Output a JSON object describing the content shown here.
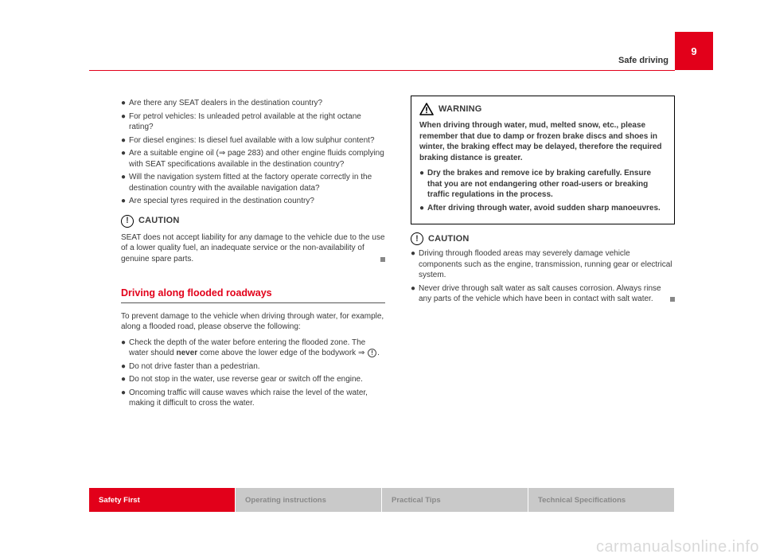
{
  "colors": {
    "accent": "#e2001a",
    "tab_inactive_bg": "#c9c9c9",
    "tab_inactive_text": "#888888",
    "text": "#3a3a3a",
    "watermark": "#d9d9d9"
  },
  "page_number": "9",
  "header_title": "Safe driving",
  "left": {
    "bullets1": [
      "Are there any SEAT dealers in the destination country?",
      "For petrol vehicles: Is unleaded petrol available at the right octane rating?",
      "For diesel engines: Is diesel fuel available with a low sulphur content?",
      "Are a suitable engine oil (⇒ page 283) and other engine fluids complying with SEAT specifications available in the destination country?",
      "Will the navigation system fitted at the factory operate correctly in the destination country with the available navigation data?",
      "Are special tyres required in the destination country?"
    ],
    "caution_label": "CAUTION",
    "caution_text": "SEAT does not accept liability for any damage to the vehicle due to the use of a lower quality fuel, an inadequate service or the non-availability of genuine spare parts.",
    "section_title": "Driving along flooded roadways",
    "intro": "To prevent damage to the vehicle when driving through water, for example, along a flooded road, please observe the following:",
    "bullets2": [
      {
        "pre": "Check the depth of the water before entering the flooded zone. The water should ",
        "strong": "never",
        "post": " come above the lower edge of the bodywork ⇒ ",
        "icon": true,
        "post2": "."
      },
      {
        "text": "Do not drive faster than a pedestrian."
      },
      {
        "text": "Do not stop in the water, use reverse gear or switch off the engine."
      },
      {
        "text": "Oncoming traffic will cause waves which raise the level of the water, making it difficult to cross the water."
      }
    ]
  },
  "right": {
    "warning_label": "WARNING",
    "warning_body": "When driving through water, mud, melted snow, etc., please remember that due to damp or frozen brake discs and shoes in winter, the braking effect may be delayed, therefore the required braking distance is greater.",
    "warning_bullets": [
      "Dry the brakes and remove ice by braking carefully. Ensure that you are not endangering other road-users or breaking traffic regulations in the process.",
      "After driving through water, avoid sudden sharp manoeuvres."
    ],
    "caution_label": "CAUTION",
    "caution_bullets": [
      "Driving through flooded areas may severely damage vehicle components such as the engine, transmission, running gear or electrical system.",
      "Never drive through salt water as salt causes corrosion. Always rinse any parts of the vehicle which have been in contact with salt water."
    ]
  },
  "tabs": [
    {
      "label": "Safety First",
      "active": true
    },
    {
      "label": "Operating instructions",
      "active": false
    },
    {
      "label": "Practical Tips",
      "active": false
    },
    {
      "label": "Technical Specifications",
      "active": false
    }
  ],
  "watermark": "carmanualsonline.info"
}
